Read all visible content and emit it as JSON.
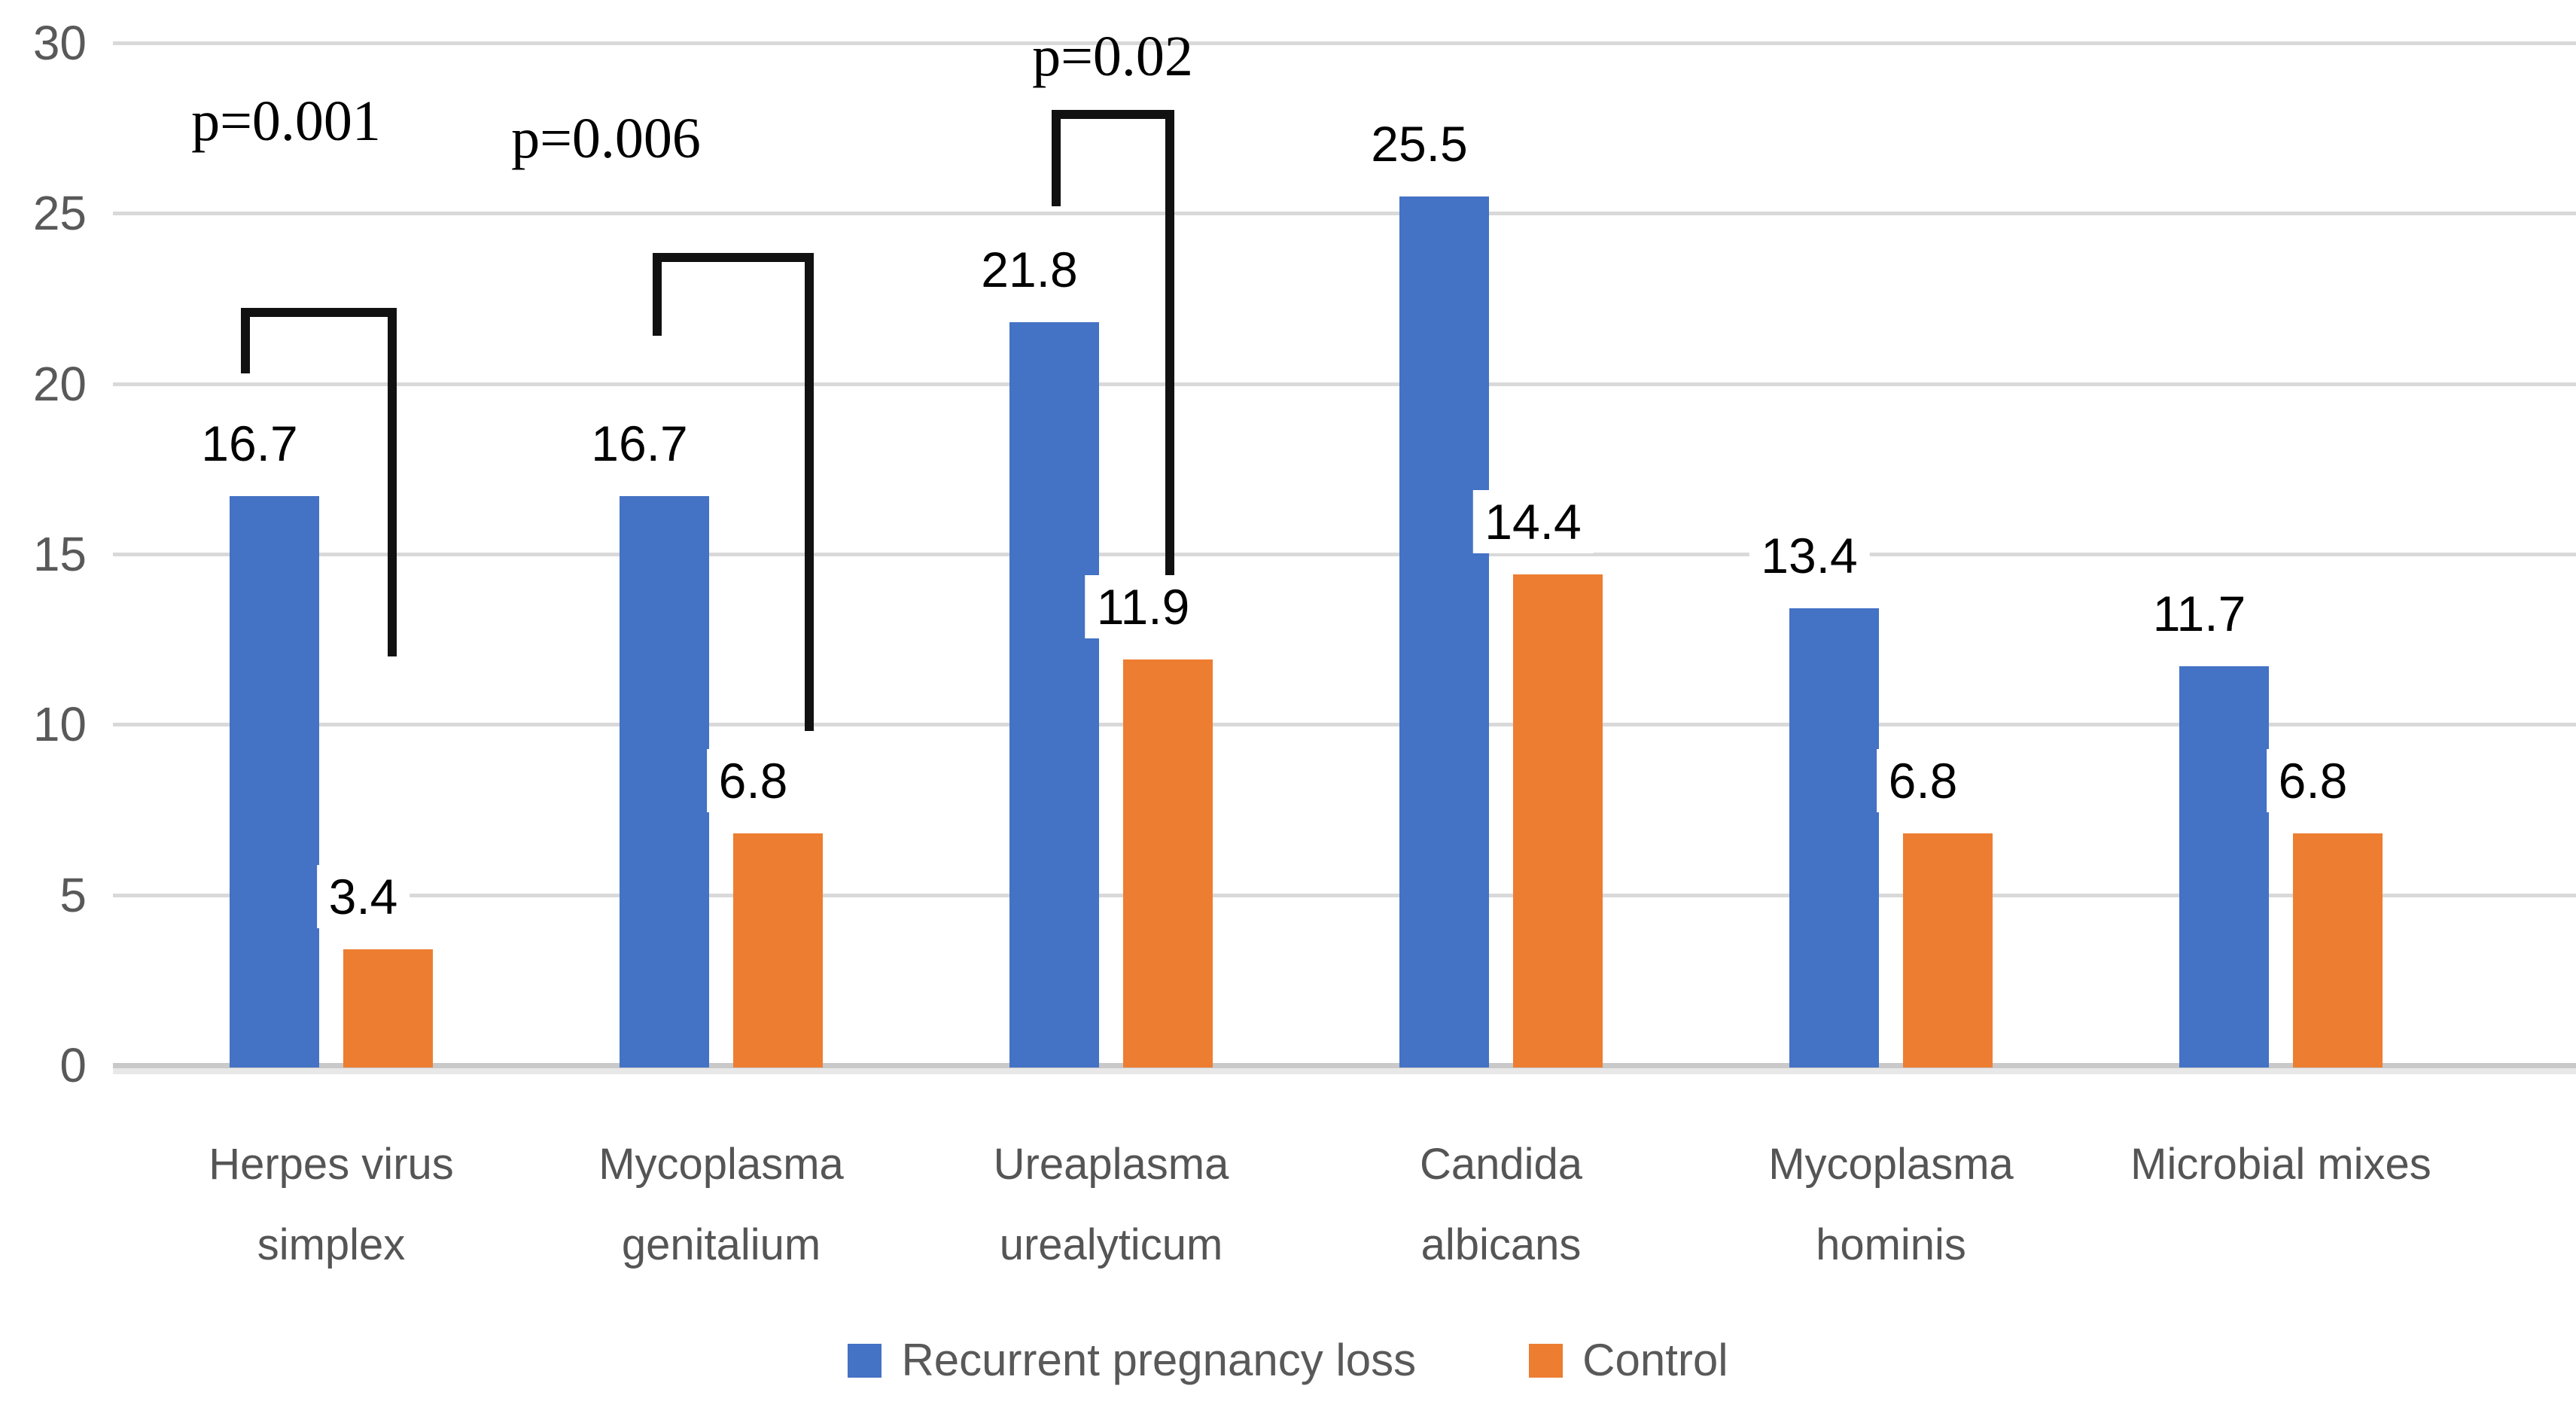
{
  "chart_data": {
    "type": "bar",
    "title": "",
    "xlabel": "",
    "ylabel": "",
    "categories": [
      "Herpes virus simplex",
      "Mycoplasma genitalium",
      "Ureaplasma urealyticum",
      "Candida albicans",
      "Mycoplasma hominis",
      "Microbial mixes"
    ],
    "category_lines": [
      [
        "Herpes virus",
        "simplex"
      ],
      [
        "Mycoplasma",
        "genitalium"
      ],
      [
        "Ureaplasma",
        "urealyticum"
      ],
      [
        "Candida",
        "albicans"
      ],
      [
        "Mycoplasma",
        "hominis"
      ],
      [
        "Microbial mixes"
      ]
    ],
    "series": [
      {
        "name": "Recurrent pregnancy loss",
        "color": "#4472C4",
        "values": [
          16.7,
          16.7,
          21.8,
          25.5,
          13.4,
          11.7
        ]
      },
      {
        "name": "Control",
        "color": "#ED7D31",
        "values": [
          3.4,
          6.8,
          11.9,
          14.4,
          6.8,
          6.8
        ]
      }
    ],
    "y_ticks": [
      0,
      5,
      10,
      15,
      20,
      25,
      30
    ],
    "ylim": [
      0,
      30
    ],
    "grid": true,
    "legend_position": "bottom",
    "annotations": [
      {
        "label": "p=0.001",
        "category_index": 0,
        "bracket_top_value": 22.1,
        "left_arm_end_value": 20.3,
        "right_arm_end_value": 12.0,
        "label_center_value": 27.7
      },
      {
        "label": "p=0.006",
        "category_index": 1,
        "bracket_top_value": 23.7,
        "left_arm_end_value": 21.4,
        "right_arm_end_value": 9.8,
        "label_center_value": 27.2
      },
      {
        "label": "p=0.02",
        "category_index": 2,
        "bracket_top_value": 27.9,
        "left_arm_end_value": 25.2,
        "right_arm_end_value": 12.9,
        "label_center_value": 29.6
      }
    ]
  },
  "colors": {
    "grid": "#D9D9D9",
    "axis": "#C9C9C9",
    "axis_shadow": "#E8E8E8",
    "tick_text": "#595959",
    "category_text": "#555555",
    "value_label_text": "#000000",
    "bracket": "#111111",
    "legend_text": "#595959",
    "background": "#FFFFFF"
  }
}
